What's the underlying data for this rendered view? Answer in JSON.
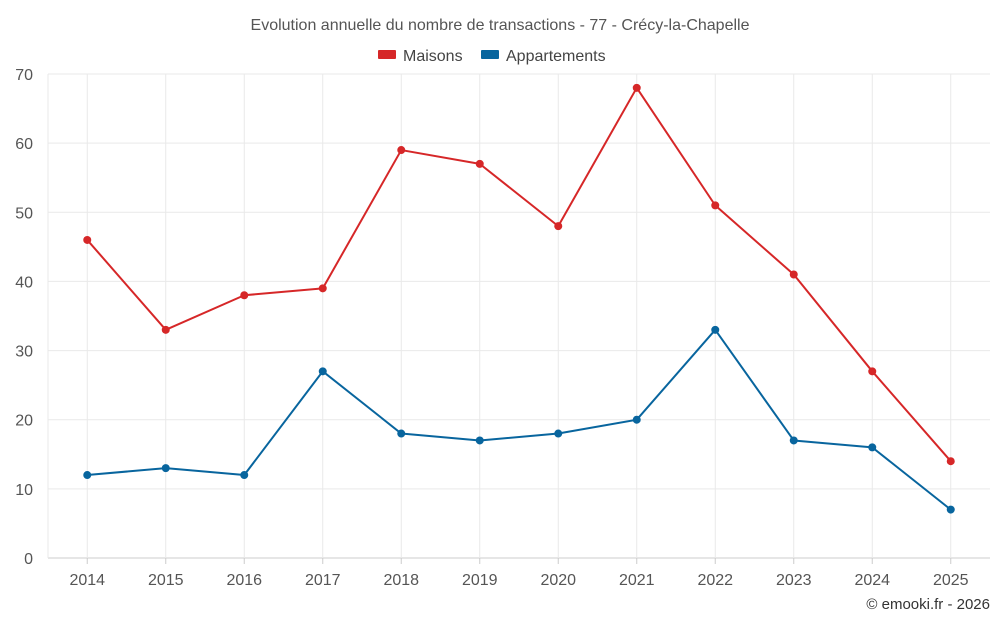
{
  "chart_data": {
    "type": "line",
    "title": "Evolution annuelle du nombre de transactions - 77 - Crécy-la-Chapelle",
    "categories": [
      "2014",
      "2015",
      "2016",
      "2017",
      "2018",
      "2019",
      "2020",
      "2021",
      "2022",
      "2023",
      "2024",
      "2025"
    ],
    "series": [
      {
        "name": "Maisons",
        "color": "#d62728",
        "values": [
          46,
          33,
          38,
          39,
          59,
          57,
          48,
          68,
          51,
          41,
          27,
          14
        ]
      },
      {
        "name": "Appartements",
        "color": "#08659e",
        "values": [
          12,
          13,
          12,
          27,
          18,
          17,
          18,
          20,
          33,
          17,
          16,
          7
        ]
      }
    ],
    "ylim": [
      0,
      70
    ],
    "yticks": [
      0,
      10,
      20,
      30,
      40,
      50,
      60,
      70
    ],
    "xlabel": "",
    "ylabel": "",
    "grid": true,
    "legend_position": "top-center"
  },
  "credit": "© emooki.fr - 2026"
}
